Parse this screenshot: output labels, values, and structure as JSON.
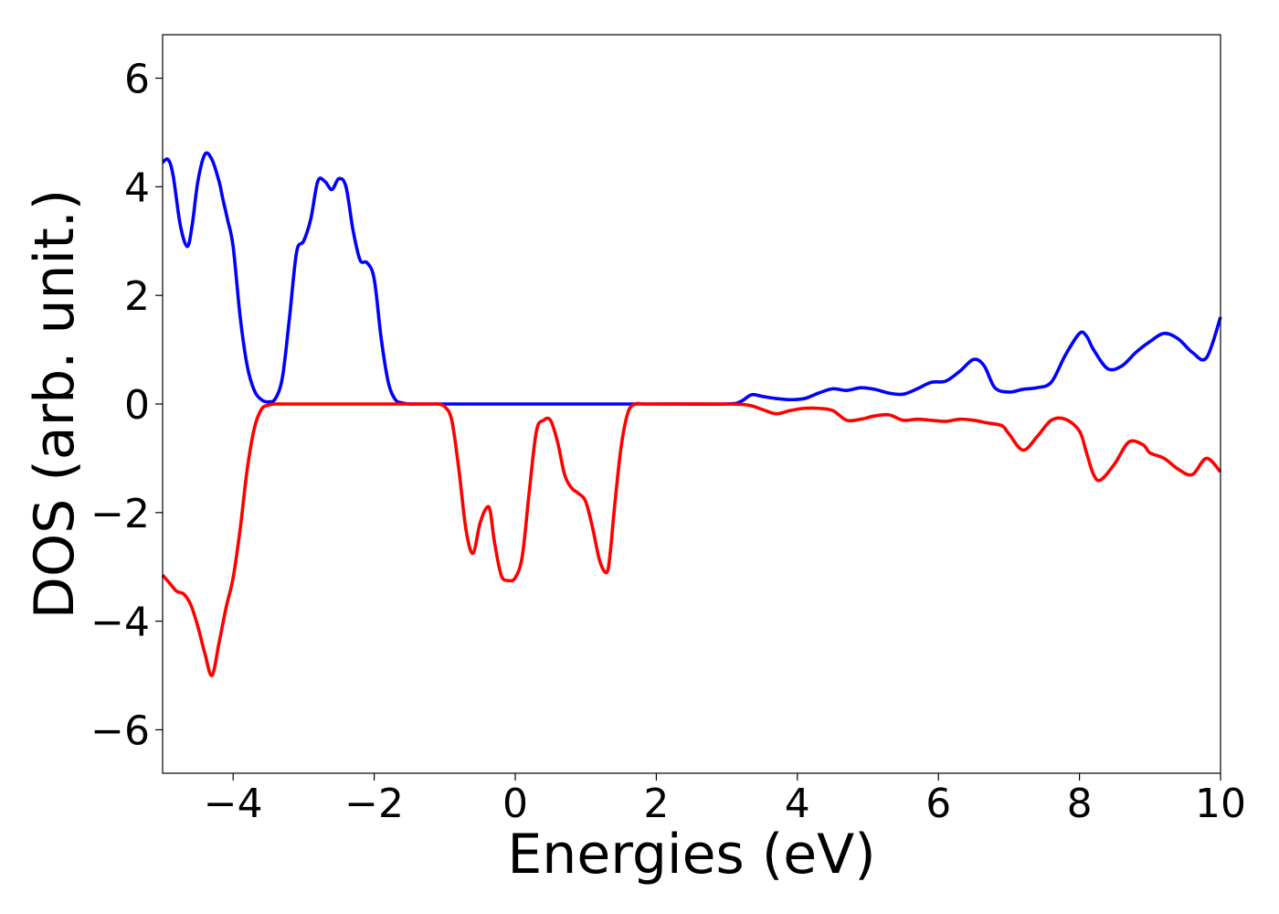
{
  "chart_data": {
    "type": "line",
    "title": "",
    "xlabel": "Energies (eV)",
    "ylabel": "DOS (arb. unit.)",
    "xlim": [
      -5,
      10
    ],
    "ylim": [
      -6.8,
      6.8
    ],
    "xticks": [
      -4,
      -2,
      0,
      2,
      4,
      6,
      8,
      10
    ],
    "xtick_labels": [
      "−4",
      "−2",
      "0",
      "2",
      "4",
      "6",
      "8",
      "10"
    ],
    "yticks": [
      -6,
      -4,
      -2,
      0,
      2,
      4,
      6
    ],
    "ytick_labels": [
      "−6",
      "−4",
      "−2",
      "0",
      "2",
      "4",
      "6"
    ],
    "grid": false,
    "series": [
      {
        "color": "#0000ff",
        "x": [
          -5.0,
          -4.92,
          -4.85,
          -4.75,
          -4.65,
          -4.58,
          -4.5,
          -4.4,
          -4.3,
          -4.2,
          -4.15,
          -4.08,
          -4.0,
          -3.9,
          -3.8,
          -3.7,
          -3.6,
          -3.5,
          -3.4,
          -3.3,
          -3.2,
          -3.1,
          -3.0,
          -2.9,
          -2.8,
          -2.7,
          -2.6,
          -2.5,
          -2.4,
          -2.3,
          -2.2,
          -2.1,
          -2.0,
          -1.9,
          -1.8,
          -1.7,
          -1.6,
          -1.5,
          -1.4,
          -1.3,
          -1.2,
          -1.1,
          -1.0,
          0.0,
          1.0,
          2.0,
          3.0,
          3.2,
          3.35,
          3.5,
          3.7,
          3.9,
          4.1,
          4.3,
          4.5,
          4.7,
          4.9,
          5.1,
          5.3,
          5.5,
          5.7,
          5.9,
          6.1,
          6.3,
          6.5,
          6.65,
          6.8,
          7.0,
          7.2,
          7.4,
          7.6,
          7.8,
          8.0,
          8.1,
          8.2,
          8.4,
          8.6,
          8.8,
          9.0,
          9.2,
          9.4,
          9.6,
          9.8,
          10.0
        ],
        "y": [
          4.45,
          4.5,
          4.2,
          3.3,
          2.9,
          3.3,
          4.1,
          4.6,
          4.5,
          4.1,
          3.8,
          3.4,
          2.9,
          1.6,
          0.7,
          0.25,
          0.08,
          0.04,
          0.1,
          0.5,
          1.6,
          2.8,
          3.0,
          3.4,
          4.1,
          4.1,
          3.95,
          4.15,
          4.0,
          3.2,
          2.65,
          2.6,
          2.3,
          1.2,
          0.4,
          0.08,
          0.02,
          0.0,
          0.0,
          0.0,
          0.0,
          0.0,
          0.0,
          0.0,
          0.0,
          0.0,
          0.0,
          0.05,
          0.17,
          0.14,
          0.1,
          0.08,
          0.1,
          0.2,
          0.28,
          0.25,
          0.3,
          0.27,
          0.2,
          0.18,
          0.28,
          0.4,
          0.42,
          0.6,
          0.82,
          0.7,
          0.3,
          0.22,
          0.27,
          0.3,
          0.4,
          0.9,
          1.3,
          1.25,
          1.0,
          0.65,
          0.7,
          0.95,
          1.15,
          1.3,
          1.2,
          0.95,
          0.85,
          1.6
        ]
      },
      {
        "color": "#ff0000",
        "x": [
          -5.0,
          -4.9,
          -4.8,
          -4.7,
          -4.6,
          -4.5,
          -4.4,
          -4.3,
          -4.2,
          -4.1,
          -4.0,
          -3.9,
          -3.8,
          -3.7,
          -3.6,
          -3.5,
          -3.4,
          -3.3,
          -3.2,
          -3.1,
          -3.0,
          -2.0,
          -1.2,
          -1.1,
          -1.0,
          -0.9,
          -0.8,
          -0.7,
          -0.6,
          -0.5,
          -0.4,
          -0.35,
          -0.3,
          -0.2,
          -0.1,
          0.0,
          0.1,
          0.2,
          0.3,
          0.4,
          0.5,
          0.6,
          0.7,
          0.8,
          0.9,
          1.0,
          1.1,
          1.2,
          1.3,
          1.35,
          1.4,
          1.5,
          1.6,
          1.7,
          1.8,
          1.9,
          2.0,
          3.0,
          3.3,
          3.5,
          3.7,
          3.9,
          4.1,
          4.3,
          4.5,
          4.7,
          4.9,
          5.1,
          5.3,
          5.5,
          5.7,
          5.9,
          6.1,
          6.3,
          6.5,
          6.7,
          6.9,
          7.0,
          7.2,
          7.4,
          7.6,
          7.8,
          8.0,
          8.1,
          8.2,
          8.3,
          8.5,
          8.7,
          8.9,
          9.0,
          9.2,
          9.4,
          9.6,
          9.8,
          10.0
        ],
        "y": [
          -3.15,
          -3.3,
          -3.45,
          -3.5,
          -3.7,
          -4.1,
          -4.6,
          -5.0,
          -4.4,
          -3.75,
          -3.2,
          -2.3,
          -1.2,
          -0.45,
          -0.1,
          -0.02,
          0.0,
          0.0,
          0.0,
          0.0,
          0.0,
          0.0,
          0.0,
          0.0,
          -0.05,
          -0.3,
          -1.2,
          -2.3,
          -2.75,
          -2.2,
          -1.9,
          -2.0,
          -2.5,
          -3.15,
          -3.25,
          -3.2,
          -2.8,
          -1.6,
          -0.5,
          -0.3,
          -0.3,
          -0.7,
          -1.3,
          -1.55,
          -1.65,
          -1.8,
          -2.3,
          -2.9,
          -3.1,
          -2.7,
          -2.0,
          -0.8,
          -0.15,
          0.0,
          0.0,
          0.0,
          0.0,
          0.0,
          -0.02,
          -0.1,
          -0.18,
          -0.12,
          -0.08,
          -0.08,
          -0.12,
          -0.3,
          -0.28,
          -0.22,
          -0.2,
          -0.3,
          -0.28,
          -0.3,
          -0.32,
          -0.28,
          -0.3,
          -0.35,
          -0.4,
          -0.55,
          -0.85,
          -0.6,
          -0.3,
          -0.28,
          -0.5,
          -0.9,
          -1.3,
          -1.4,
          -1.1,
          -0.7,
          -0.75,
          -0.9,
          -1.0,
          -1.2,
          -1.3,
          -1.0,
          -1.25
        ]
      }
    ]
  }
}
